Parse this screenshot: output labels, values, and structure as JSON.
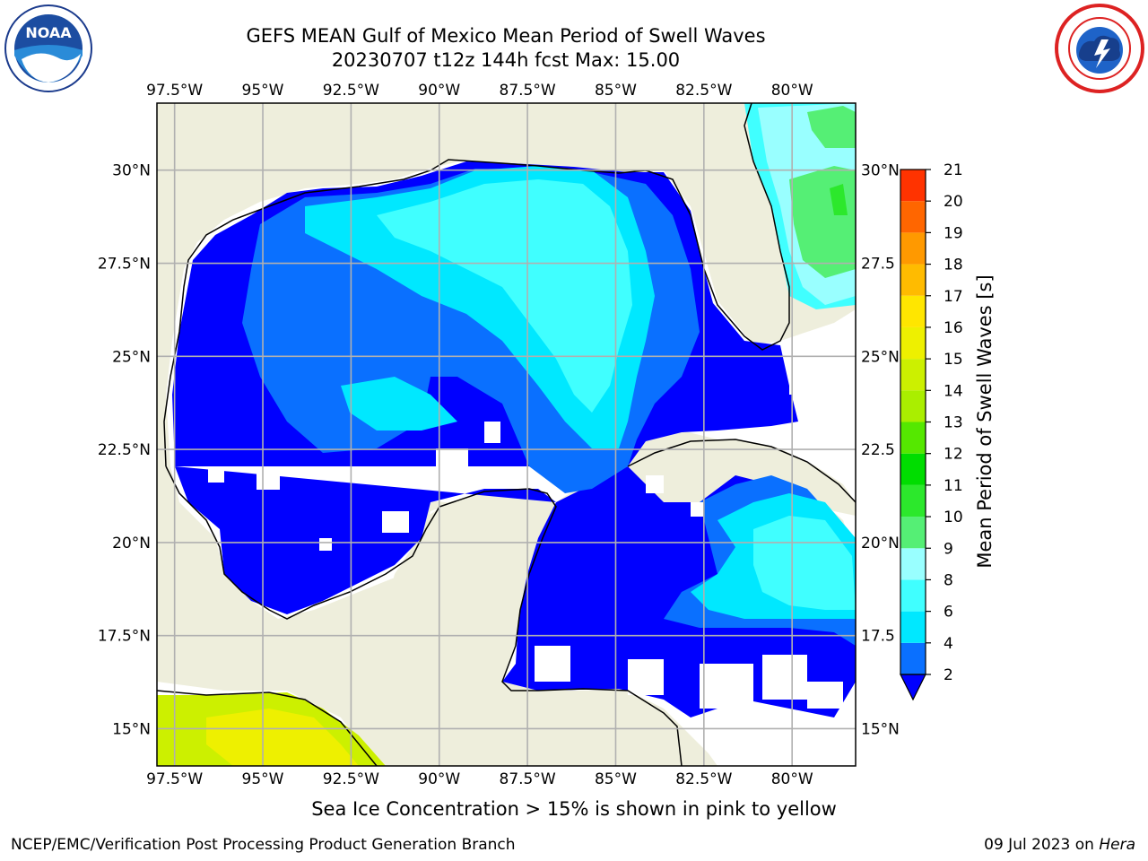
{
  "header": {
    "title": "GEFS MEAN Gulf of Mexico Mean Period of Swell Waves",
    "subtitle": "20230707 t12z 144h fcst   Max: 15.00"
  },
  "logos": {
    "left": {
      "name": "noaa-logo",
      "text": "NOAA"
    },
    "right": {
      "name": "nws-logo"
    }
  },
  "map": {
    "lon_labels": [
      "97.5°W",
      "95°W",
      "92.5°W",
      "90°W",
      "87.5°W",
      "85°W",
      "82.5°W",
      "80°W"
    ],
    "lon_values": [
      -97.5,
      -95,
      -92.5,
      -90,
      -87.5,
      -85,
      -82.5,
      -80
    ],
    "lat_labels_left": [
      "30°N",
      "27.5°N",
      "25°N",
      "22.5°N",
      "20°N",
      "17.5°N",
      "15°N"
    ],
    "lat_labels_right": [
      "30°N",
      "27.5",
      "25°N",
      "22.5",
      "20°N",
      "17.5",
      "15°N"
    ],
    "lat_values": [
      30,
      27.5,
      25,
      22.5,
      20,
      17.5,
      15
    ],
    "extent": {
      "lon_min": -98.0,
      "lon_max": -78.2,
      "lat_min": 14.0,
      "lat_max": 31.8
    },
    "colors": {
      "land": "#eeeedc",
      "grid": "#b0b0b0",
      "coast": "#000000",
      "nodata": "#ffffff"
    }
  },
  "colorbar": {
    "title": "Mean Period of Swell Waves [s]",
    "tick_labels": [
      "2",
      "4",
      "6",
      "8",
      "9",
      "10",
      "11",
      "12",
      "13",
      "14",
      "15",
      "16",
      "17",
      "18",
      "19",
      "20",
      "21"
    ],
    "colors": [
      "#0a70ff",
      "#00e8ff",
      "#40ffff",
      "#99ffff",
      "#55ef75",
      "#2ce82c",
      "#00dd00",
      "#55e800",
      "#aaee00",
      "#ccf000",
      "#eef000",
      "#ffe600",
      "#ffbb00",
      "#ff9900",
      "#ff6600",
      "#ff3300"
    ],
    "under_color": "#0000ff"
  },
  "footer": {
    "note": "Sea Ice Concentration > 15% is shown in pink to yellow",
    "credit": "NCEP/EMC/Verification Post Processing Product Generation Branch",
    "date": "09 Jul 2023 on",
    "machine": "Hera"
  }
}
